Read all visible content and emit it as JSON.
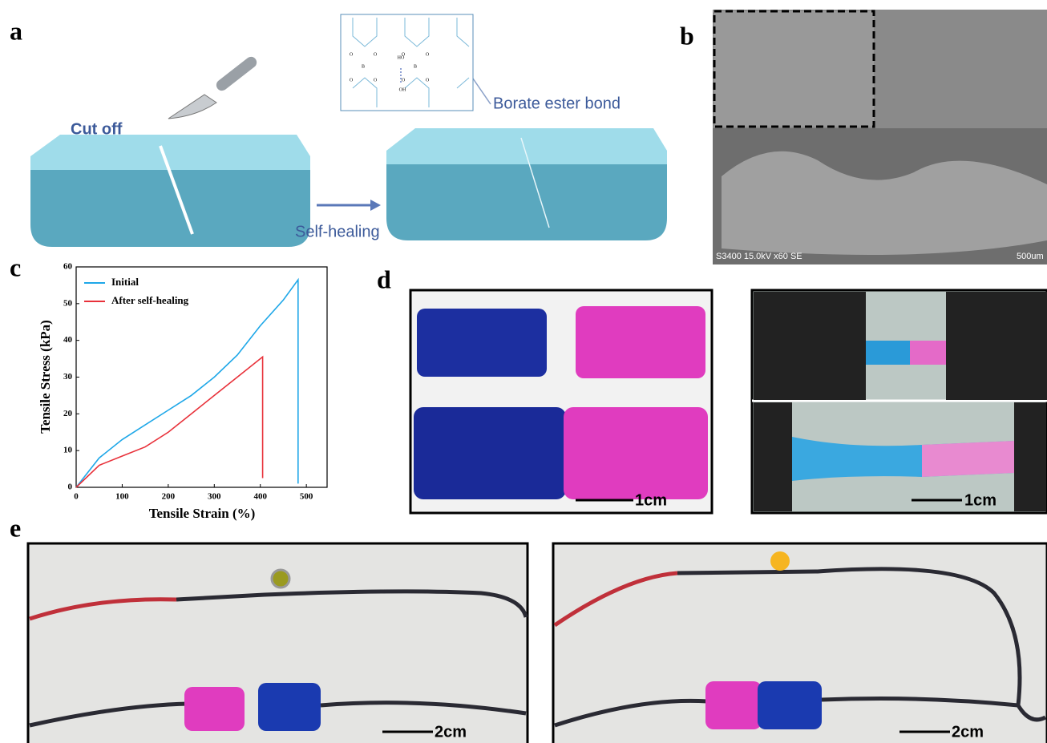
{
  "panel_labels": [
    "a",
    "b",
    "c",
    "d",
    "e"
  ],
  "panel_a": {
    "cut_label": "Cut off",
    "heal_label": "Self-healing",
    "bond_label": "Borate ester bond",
    "structure_atoms": [
      "O",
      "O",
      "B",
      "O",
      "O",
      "HO",
      "OH",
      "O",
      "O",
      "B",
      "O",
      "O"
    ]
  },
  "panel_b": {
    "sem_caption": "S3400 15.0kV x60 SE",
    "scale_label": "500um"
  },
  "chart_data": {
    "type": "line",
    "x_label": "Tensile Strain (%)",
    "y_label": "Tensile Stress (kPa)",
    "series": [
      {
        "name": "Initial",
        "color": "#1ea7e8",
        "x": [
          0,
          50,
          100,
          150,
          200,
          250,
          300,
          350,
          400,
          450,
          482,
          482
        ],
        "values": [
          0,
          8,
          13,
          17,
          21,
          25,
          30,
          36,
          44,
          51,
          56.5,
          1
        ]
      },
      {
        "name": "After self-healing",
        "color": "#e8313a",
        "x": [
          0,
          50,
          100,
          150,
          200,
          250,
          300,
          350,
          405,
          405
        ],
        "values": [
          0,
          6,
          8.5,
          11,
          15,
          20,
          25,
          30,
          35.5,
          2.5
        ]
      }
    ],
    "xlim": [
      0,
      545
    ],
    "ylim": [
      0,
      60
    ],
    "xticks": [
      0,
      100,
      200,
      300,
      400,
      500
    ],
    "yticks": [
      0,
      10,
      20,
      30,
      40,
      50,
      60
    ],
    "legend": "upper left"
  },
  "panel_d": {
    "scale_labels": [
      "1cm",
      "1cm"
    ]
  },
  "panel_e": {
    "scale_labels": [
      "2cm",
      "2cm"
    ]
  }
}
